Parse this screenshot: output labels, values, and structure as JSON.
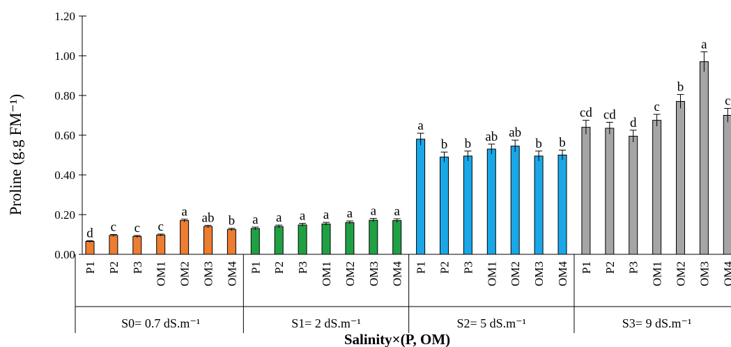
{
  "chart_data": {
    "type": "bar",
    "title": "",
    "xlabel": "Salinity×(P, OM)",
    "ylabel": "Proline (g.g FM⁻¹)",
    "ylim": [
      0,
      1.2
    ],
    "yticks": [
      "0.00",
      "0.20",
      "0.40",
      "0.60",
      "0.80",
      "1.00",
      "1.20"
    ],
    "grid": false,
    "legend": "none",
    "groups": [
      {
        "label": "S0= 0.7 dS.m⁻¹",
        "color": "#ED7D31",
        "categories": [
          "P1",
          "P2",
          "P3",
          "OM1",
          "OM2",
          "OM3",
          "OM4"
        ],
        "values": [
          0.065,
          0.095,
          0.09,
          0.097,
          0.17,
          0.14,
          0.125
        ],
        "errors": [
          0.004,
          0.005,
          0.005,
          0.005,
          0.007,
          0.006,
          0.006
        ],
        "letters": [
          "d",
          "c",
          "c",
          "c",
          "a",
          "ab",
          "b"
        ]
      },
      {
        "label": "S1= 2 dS.m⁻¹",
        "color": "#1FA143",
        "categories": [
          "P1",
          "P2",
          "P3",
          "OM1",
          "OM2",
          "OM3",
          "OM4"
        ],
        "values": [
          0.13,
          0.14,
          0.148,
          0.153,
          0.16,
          0.172,
          0.17
        ],
        "errors": [
          0.007,
          0.007,
          0.008,
          0.008,
          0.008,
          0.009,
          0.009
        ],
        "letters": [
          "a",
          "a",
          "a",
          "a",
          "a",
          "a",
          "a"
        ]
      },
      {
        "label": "S2= 5 dS.m⁻¹",
        "color": "#1AA7E8",
        "categories": [
          "P1",
          "P2",
          "P3",
          "OM1",
          "OM2",
          "OM3",
          "OM4"
        ],
        "values": [
          0.58,
          0.49,
          0.495,
          0.53,
          0.545,
          0.495,
          0.5
        ],
        "errors": [
          0.03,
          0.025,
          0.025,
          0.025,
          0.03,
          0.025,
          0.025
        ],
        "letters": [
          "a",
          "b",
          "b",
          "ab",
          "ab",
          "b",
          "b"
        ]
      },
      {
        "label": "S3= 9 dS.m⁻¹",
        "color": "#A5A5A5",
        "categories": [
          "P1",
          "P2",
          "P3",
          "OM1",
          "OM2",
          "OM3",
          "OM4"
        ],
        "values": [
          0.64,
          0.635,
          0.595,
          0.675,
          0.77,
          0.97,
          0.7
        ],
        "errors": [
          0.035,
          0.03,
          0.03,
          0.03,
          0.035,
          0.05,
          0.035
        ],
        "letters": [
          "cd",
          "cd",
          "d",
          "c",
          "b",
          "a",
          "c"
        ]
      }
    ]
  }
}
